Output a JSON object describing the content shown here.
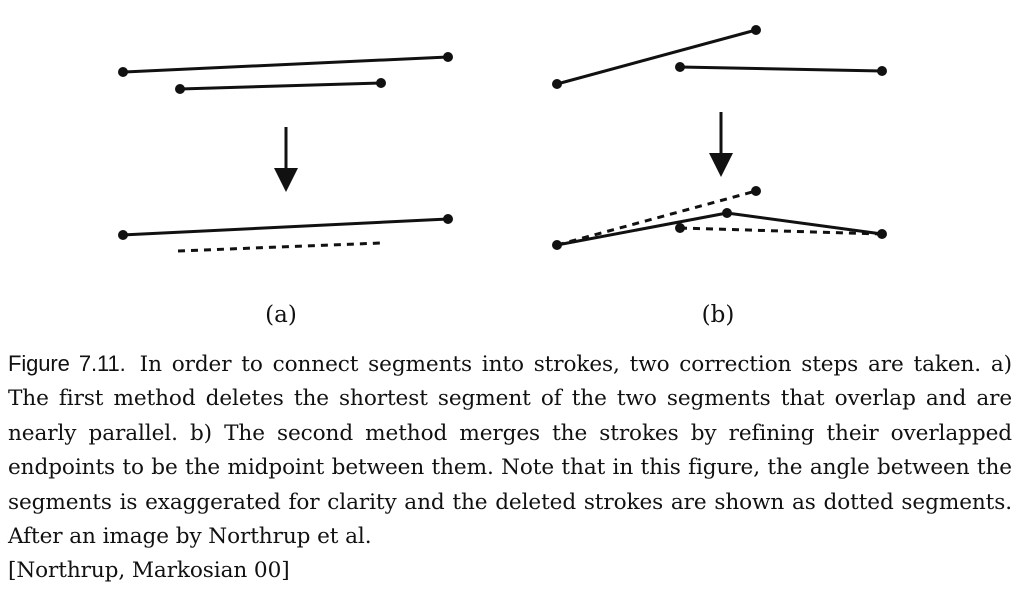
{
  "figure": {
    "number": "Figure 7.11.",
    "panels": [
      {
        "id": "a",
        "label": "(a)"
      },
      {
        "id": "b",
        "label": "(b)"
      }
    ]
  },
  "caption": {
    "text": "In order to connect segments into strokes, two correction steps are taken. a) The first method deletes the shortest segment of the two segments that overlap and are nearly parallel. b) The second method merges the strokes by refining their overlapped endpoints to be the midpoint between them. Note that in this figure, the angle between the segments is exaggerated for clarity and the deleted strokes are shown as dotted segments. After an image by Northrup et al.",
    "citation": "[Northrup, Markosian 00]"
  },
  "colors": {
    "ink": "#111111",
    "background": "#ffffff"
  }
}
